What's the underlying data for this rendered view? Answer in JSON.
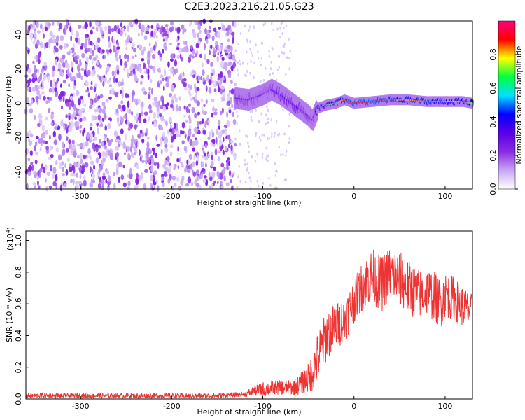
{
  "title": "C2E3.2023.216.21.05.G23",
  "chart_data": [
    {
      "type": "heatmap",
      "xlabel": "Height of straight line (km)",
      "ylabel": "Frequency (Hz)",
      "xlim": [
        -360,
        130
      ],
      "ylim": [
        -50,
        48
      ],
      "xticks": [
        -300,
        -200,
        -100,
        0,
        100
      ],
      "yticks": [
        -40,
        -20,
        0,
        20,
        40
      ],
      "colorbar": {
        "label": "Normalized spectral amplitude",
        "range": [
          0,
          1
        ],
        "ticks": [
          0.0,
          0.2,
          0.4,
          0.6,
          0.8
        ],
        "colormap": [
          "#ffffff",
          "#c8a8f5",
          "#8a2be2",
          "#5a00e6",
          "#0000ff",
          "#00e0ff",
          "#00ff40",
          "#ffff00",
          "#ff0000",
          "#ff0080"
        ]
      },
      "ridge_track": {
        "x": [
          -130,
          -115,
          -100,
          -90,
          -80,
          -70,
          -60,
          -50,
          -45,
          -40,
          -30,
          -20,
          -10,
          0,
          20,
          40,
          60,
          80,
          100,
          120,
          130
        ],
        "y": [
          3,
          2,
          5,
          8,
          5,
          1,
          -3,
          -7,
          -10,
          -3,
          -1,
          0,
          2,
          0,
          1,
          2,
          2,
          1,
          1,
          1,
          0
        ],
        "amplitude": [
          0.35,
          0.35,
          0.3,
          0.35,
          0.4,
          0.4,
          0.4,
          0.35,
          0.3,
          0.45,
          0.6,
          0.7,
          0.85,
          0.9,
          0.9,
          0.85,
          0.8,
          0.85,
          0.8,
          0.75,
          0.7
        ]
      }
    },
    {
      "type": "line",
      "xlabel": "Height of straight line (km)",
      "ylabel": "SNR (10 * v/v)",
      "yscale_note": "(x10",
      "yscale_exp": "4",
      "yscale_close": ")",
      "xlim": [
        -360,
        130
      ],
      "ylim": [
        0,
        1.06
      ],
      "xticks": [
        -300,
        -200,
        -100,
        0,
        100
      ],
      "yticks": [
        0.0,
        0.2,
        0.4,
        0.6,
        0.8,
        1.0
      ],
      "color": "#ee3333",
      "series": [
        {
          "x": [
            -360,
            -300,
            -250,
            -200,
            -150,
            -120,
            -110,
            -100,
            -90,
            -80,
            -70,
            -60,
            -50,
            -45,
            -40,
            -35,
            -30,
            -25,
            -20,
            -15,
            -10,
            -5,
            0,
            10,
            20,
            25,
            30,
            40,
            50,
            60,
            70,
            80,
            90,
            95,
            100,
            110,
            120,
            130
          ],
          "y": [
            0.02,
            0.02,
            0.02,
            0.02,
            0.02,
            0.03,
            0.05,
            0.06,
            0.07,
            0.07,
            0.07,
            0.09,
            0.13,
            0.18,
            0.26,
            0.33,
            0.4,
            0.44,
            0.46,
            0.48,
            0.5,
            0.56,
            0.62,
            0.72,
            0.78,
            0.75,
            0.72,
            0.8,
            0.76,
            0.7,
            0.66,
            0.68,
            0.64,
            0.6,
            0.66,
            0.63,
            0.58,
            0.55
          ],
          "noise": [
            0.01,
            0.01,
            0.01,
            0.01,
            0.01,
            0.01,
            0.02,
            0.03,
            0.03,
            0.03,
            0.03,
            0.04,
            0.06,
            0.08,
            0.1,
            0.1,
            0.1,
            0.1,
            0.09,
            0.09,
            0.09,
            0.09,
            0.09,
            0.1,
            0.11,
            0.11,
            0.11,
            0.11,
            0.11,
            0.11,
            0.1,
            0.1,
            0.1,
            0.1,
            0.09,
            0.09,
            0.08,
            0.07
          ]
        }
      ]
    }
  ]
}
